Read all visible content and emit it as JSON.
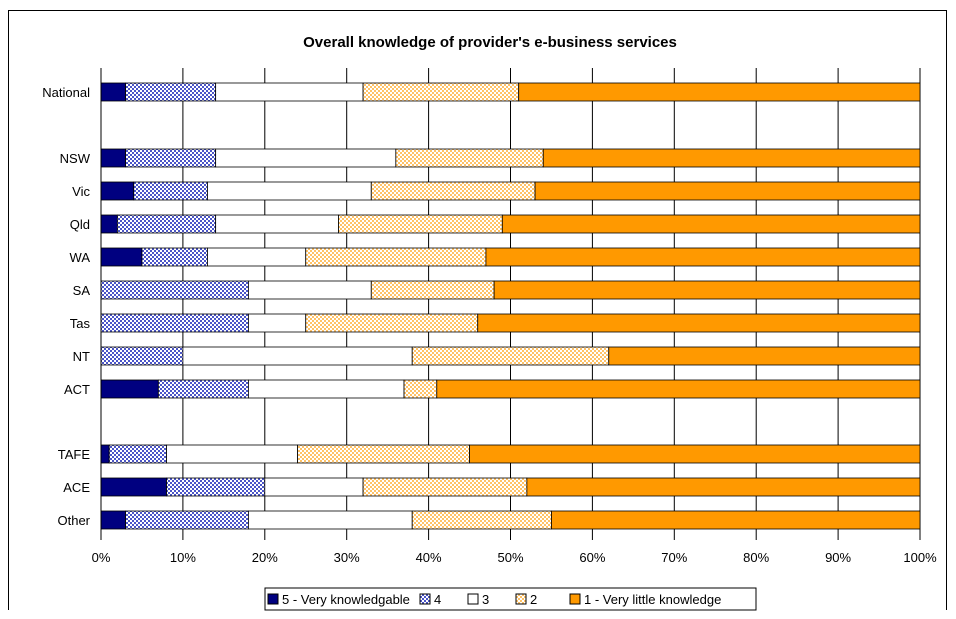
{
  "chart_data": {
    "type": "bar",
    "orientation": "horizontal",
    "stacked": "percent",
    "title": "Overall knowledge of provider's e-business services",
    "categories": [
      "National",
      "NSW",
      "Vic",
      "Qld",
      "WA",
      "SA",
      "Tas",
      "NT",
      "ACT",
      "TAFE",
      "ACE",
      "Other"
    ],
    "series": [
      {
        "name": "5 - Very knowledgable",
        "color": "#000080",
        "pattern": "solid",
        "values": [
          3,
          3,
          4,
          2,
          5,
          0,
          0,
          0,
          7,
          1,
          8,
          3
        ]
      },
      {
        "name": "4",
        "color": "#5b63c8",
        "pattern": "checker",
        "values": [
          11,
          11,
          9,
          12,
          8,
          18,
          18,
          10,
          11,
          7,
          12,
          15
        ]
      },
      {
        "name": "3",
        "color": "#ffffff",
        "pattern": "solid",
        "values": [
          18,
          22,
          20,
          15,
          12,
          15,
          7,
          28,
          19,
          16,
          12,
          20
        ]
      },
      {
        "name": "2",
        "color": "#ffcc80",
        "pattern": "checker",
        "values": [
          19,
          18,
          20,
          20,
          22,
          15,
          21,
          24,
          4,
          21,
          20,
          17
        ]
      },
      {
        "name": "1 - Very little knowledge",
        "color": "#ff9900",
        "pattern": "solid",
        "values": [
          49,
          46,
          47,
          51,
          53,
          52,
          54,
          38,
          59,
          55,
          48,
          45
        ]
      }
    ],
    "x_ticks": [
      "0%",
      "10%",
      "20%",
      "30%",
      "40%",
      "50%",
      "60%",
      "70%",
      "80%",
      "90%",
      "100%"
    ],
    "xlim": [
      0,
      100
    ],
    "grid": true,
    "legend": "bottom"
  }
}
